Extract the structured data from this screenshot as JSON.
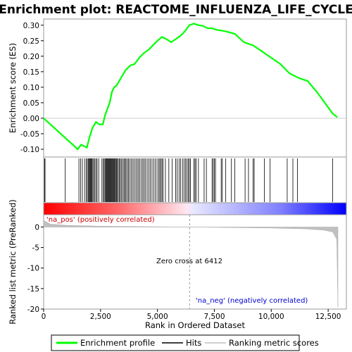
{
  "chart_data": {
    "type": "line",
    "title": "Enrichment plot: REACTOME_INFLUENZA_LIFE_CYCLE",
    "panels": {
      "enrichment": {
        "ylabel": "Enrichment score (ES)",
        "ylim": [
          -0.125,
          0.32
        ],
        "yticks": [
          -0.1,
          -0.05,
          0.0,
          0.05,
          0.1,
          0.15,
          0.2,
          0.25,
          0.3
        ],
        "ytick_labels": [
          "-0.10",
          "-0.05",
          "0.00",
          "0.05",
          "0.10",
          "0.15",
          "0.20",
          "0.25",
          "0.30"
        ]
      },
      "ranking": {
        "ylabel": "Ranked list metric (PreRanked)",
        "ylim": [
          -20,
          3
        ],
        "yticks": [
          0,
          -5,
          -10,
          -15,
          -20
        ],
        "ytick_labels": [
          "0",
          "-5",
          "-10",
          "-15",
          "-20"
        ]
      }
    },
    "xlabel": "Rank in Ordered Dataset",
    "xlim": [
      0,
      13300
    ],
    "xticks": [
      0,
      2500,
      5000,
      7500,
      10000,
      12500
    ],
    "xtick_labels": [
      "0",
      "2,500",
      "5,000",
      "7,500",
      "10,000",
      "12,500"
    ],
    "series": [
      {
        "name": "Enrichment profile",
        "color": "#00ff00",
        "x": [
          0,
          900,
          1500,
          1650,
          1900,
          2000,
          2150,
          2300,
          2450,
          2600,
          2700,
          2800,
          2900,
          3000,
          3100,
          3200,
          3400,
          3600,
          3800,
          4000,
          4200,
          4400,
          4600,
          4800,
          5000,
          5200,
          5400,
          5600,
          5800,
          6000,
          6200,
          6400,
          6600,
          6800,
          7000,
          7200,
          7400,
          7600,
          7800,
          8000,
          8400,
          8800,
          9200,
          9600,
          10000,
          10400,
          10800,
          11200,
          11600,
          12000,
          12400,
          12700,
          12900
        ],
        "y": [
          0.0,
          -0.06,
          -0.1,
          -0.085,
          -0.095,
          -0.065,
          -0.03,
          -0.012,
          -0.02,
          -0.02,
          0.01,
          0.03,
          0.05,
          0.085,
          0.1,
          0.105,
          0.13,
          0.155,
          0.17,
          0.175,
          0.195,
          0.21,
          0.22,
          0.235,
          0.25,
          0.262,
          0.255,
          0.245,
          0.255,
          0.265,
          0.28,
          0.3,
          0.305,
          0.3,
          0.298,
          0.29,
          0.29,
          0.285,
          0.283,
          0.28,
          0.272,
          0.245,
          0.235,
          0.215,
          0.195,
          0.175,
          0.145,
          0.13,
          0.12,
          0.085,
          0.045,
          0.015,
          0.003
        ]
      }
    ],
    "hits": [
      40,
      60,
      950,
      1550,
      1620,
      1700,
      1800,
      1870,
      1920,
      1960,
      2000,
      2030,
      2060,
      2090,
      2120,
      2160,
      2200,
      2250,
      2300,
      2350,
      2420,
      2560,
      2620,
      2660,
      2700,
      2740,
      2770,
      2800,
      2830,
      2860,
      2890,
      2920,
      2950,
      2980,
      3010,
      3040,
      3070,
      3100,
      3130,
      3160,
      3200,
      3230,
      3280,
      3330,
      3370,
      3420,
      3480,
      3530,
      3580,
      3620,
      3680,
      3730,
      3790,
      3850,
      3920,
      3980,
      4050,
      4110,
      4170,
      4230,
      4300,
      4360,
      4420,
      4480,
      4550,
      4620,
      4690,
      4760,
      4830,
      4900,
      4980,
      5050,
      5100,
      5150,
      5200,
      5250,
      5350,
      5500,
      5650,
      5800,
      5870,
      5950,
      6020,
      6100,
      6170,
      6230,
      6290,
      6350,
      6400,
      6450,
      6600,
      6650,
      6700,
      6800,
      7050,
      7150,
      7400,
      7450,
      7500,
      7550,
      7800,
      7850,
      8000,
      8250,
      8400,
      8850,
      9000,
      9200,
      9250,
      9700,
      9950,
      10700,
      10950,
      11150,
      12700
    ],
    "gradient": {
      "positive_color": "#ff0000",
      "negative_color": "#0000ff",
      "zero_cross": 6412
    },
    "ranking_metric": {
      "x": [
        0,
        300,
        1000,
        2500,
        6412,
        10000,
        11500,
        12300,
        12700,
        12880,
        12930
      ],
      "y": [
        1.6,
        0.7,
        0.4,
        0.2,
        0.0,
        -0.25,
        -0.45,
        -0.75,
        -1.2,
        -3.0,
        -19.5
      ],
      "color": "#c0c0c0"
    },
    "annotations": {
      "na_pos": "'na_pos' (positively correlated)",
      "na_neg": "'na_neg' (negatively correlated)",
      "zero_cross": "Zero cross at 6412",
      "pos_color": "#cc0000",
      "neg_color": "#0000cc"
    },
    "legend": {
      "position": "bottom",
      "entries": [
        {
          "label": "Enrichment profile",
          "color": "#00ff00",
          "style": "thick-line"
        },
        {
          "label": "Hits",
          "color": "#000000",
          "style": "line"
        },
        {
          "label": "Ranking metric scores",
          "color": "#c0c0c0",
          "style": "line"
        }
      ]
    }
  }
}
